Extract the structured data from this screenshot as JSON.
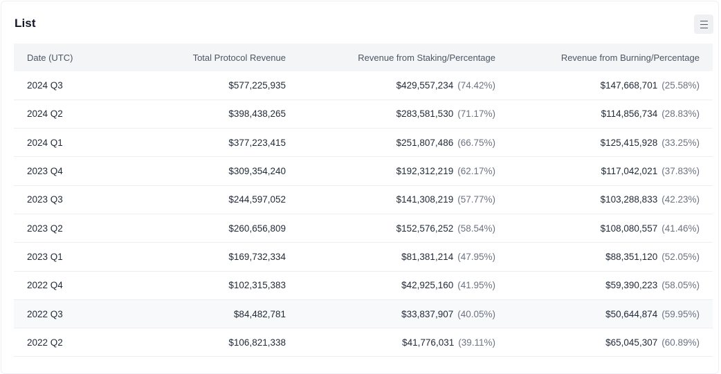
{
  "panel": {
    "title": "List",
    "menu_icon": "hamburger-menu-icon"
  },
  "table": {
    "headers": [
      "Date (UTC)",
      "Total Protocol Revenue",
      "Revenue from Staking/Percentage",
      "Revenue from Burning/Percentage"
    ],
    "rows": [
      {
        "date": "2024 Q3",
        "total": "$577,225,935",
        "staking": "$429,557,234",
        "staking_pct": "(74.42%)",
        "burning": "$147,668,701",
        "burning_pct": "(25.58%)"
      },
      {
        "date": "2024 Q2",
        "total": "$398,438,265",
        "staking": "$283,581,530",
        "staking_pct": "(71.17%)",
        "burning": "$114,856,734",
        "burning_pct": "(28.83%)"
      },
      {
        "date": "2024 Q1",
        "total": "$377,223,415",
        "staking": "$251,807,486",
        "staking_pct": "(66.75%)",
        "burning": "$125,415,928",
        "burning_pct": "(33.25%)"
      },
      {
        "date": "2023 Q4",
        "total": "$309,354,240",
        "staking": "$192,312,219",
        "staking_pct": "(62.17%)",
        "burning": "$117,042,021",
        "burning_pct": "(37.83%)"
      },
      {
        "date": "2023 Q3",
        "total": "$244,597,052",
        "staking": "$141,308,219",
        "staking_pct": "(57.77%)",
        "burning": "$103,288,833",
        "burning_pct": "(42.23%)"
      },
      {
        "date": "2023 Q2",
        "total": "$260,656,809",
        "staking": "$152,576,252",
        "staking_pct": "(58.54%)",
        "burning": "$108,080,557",
        "burning_pct": "(41.46%)"
      },
      {
        "date": "2023 Q1",
        "total": "$169,732,334",
        "staking": "$81,381,214",
        "staking_pct": "(47.95%)",
        "burning": "$88,351,120",
        "burning_pct": "(52.05%)"
      },
      {
        "date": "2022 Q4",
        "total": "$102,315,383",
        "staking": "$42,925,160",
        "staking_pct": "(41.95%)",
        "burning": "$59,390,223",
        "burning_pct": "(58.05%)"
      },
      {
        "date": "2022 Q3",
        "total": "$84,482,781",
        "staking": "$33,837,907",
        "staking_pct": "(40.05%)",
        "burning": "$50,644,874",
        "burning_pct": "(59.95%)"
      },
      {
        "date": "2022 Q2",
        "total": "$106,821,338",
        "staking": "$41,776,031",
        "staking_pct": "(39.11%)",
        "burning": "$65,045,307",
        "burning_pct": "(60.89%)"
      }
    ],
    "highlighted_row_index": 8
  }
}
